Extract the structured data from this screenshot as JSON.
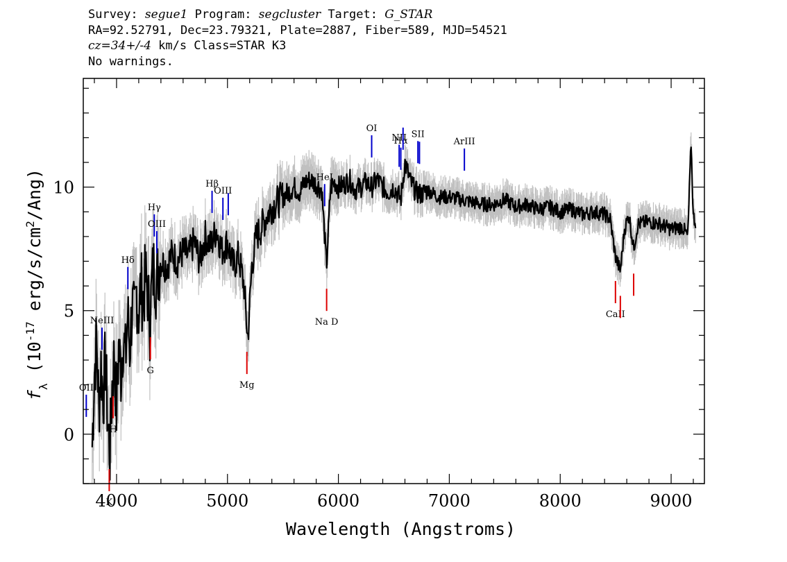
{
  "header": {
    "line1": {
      "survey_prefix": "Survey: ",
      "survey": "segue1",
      "program_prefix": " Program: ",
      "program": "segcluster",
      "target_prefix": " Target: ",
      "target": "G_STAR"
    },
    "line2": "RA=92.52791, Dec=23.79321, Plate=2887, Fiber=589, MJD=54521",
    "line3": {
      "cz": "cz=34+/-4",
      "rest": " km/s Class=STAR K3"
    },
    "line4": "No warnings."
  },
  "colors": {
    "flux": "#000000",
    "error_band": "#c0c0c0",
    "emission": "#0000cc",
    "absorption": "#dd0000"
  },
  "chart_data": {
    "type": "line",
    "title": "",
    "xlabel": "Wavelength (Angstroms)",
    "ylabel": "f_λ (10^-17 erg/s/cm^2/Ang)",
    "xlim": [
      3700,
      9300
    ],
    "ylim": [
      -2,
      14.4
    ],
    "xticks": [
      4000,
      5000,
      6000,
      7000,
      8000,
      9000
    ],
    "yticks": [
      0,
      5,
      10
    ],
    "grid": false,
    "series": [
      {
        "x": [
          3780,
          3800,
          3820,
          3840,
          3860,
          3880,
          3900,
          3920,
          3940,
          3960,
          3980,
          4000,
          4020,
          4040,
          4060,
          4080,
          4100,
          4120,
          4140,
          4160,
          4180,
          4200,
          4220,
          4240,
          4260,
          4280,
          4300,
          4320,
          4340,
          4360,
          4380,
          4400,
          4450,
          4500,
          4550,
          4600,
          4650,
          4700,
          4750,
          4800,
          4850,
          4900,
          4950,
          5000,
          5050,
          5100,
          5150,
          5183,
          5220,
          5260,
          5300,
          5350,
          5400,
          5450,
          5500,
          5550,
          5600,
          5650,
          5700,
          5750,
          5800,
          5850,
          5893,
          5930,
          5970,
          6000,
          6050,
          6100,
          6150,
          6200,
          6250,
          6300,
          6350,
          6400,
          6450,
          6500,
          6563,
          6600,
          6650,
          6700,
          6750,
          6800,
          6900,
          7000,
          7100,
          7200,
          7300,
          7400,
          7500,
          7600,
          7700,
          7800,
          7900,
          8000,
          8100,
          8200,
          8300,
          8400,
          8450,
          8498,
          8542,
          8580,
          8620,
          8662,
          8700,
          8800,
          8900,
          9000,
          9100,
          9150,
          9180,
          9200,
          9220
        ],
        "y": [
          -0.5,
          2.5,
          3.8,
          1.0,
          2.8,
          1.5,
          3.0,
          0.5,
          -0.8,
          2.0,
          3.2,
          1.0,
          3.5,
          2.5,
          4.0,
          3.0,
          4.8,
          3.5,
          5.2,
          4.5,
          5.8,
          5.0,
          6.0,
          5.5,
          6.3,
          5.8,
          4.5,
          6.2,
          6.8,
          6.0,
          6.8,
          7.0,
          6.8,
          7.3,
          7.0,
          7.4,
          7.2,
          7.8,
          7.0,
          8.0,
          7.6,
          8.3,
          7.4,
          7.8,
          6.8,
          7.2,
          6.0,
          3.8,
          6.8,
          8.0,
          8.3,
          8.8,
          9.2,
          9.4,
          9.6,
          9.8,
          10.0,
          9.8,
          10.2,
          10.3,
          10.1,
          9.9,
          6.8,
          10.0,
          10.2,
          10.0,
          10.1,
          10.3,
          9.9,
          10.0,
          10.2,
          10.0,
          10.3,
          10.0,
          9.8,
          10.0,
          9.5,
          11.0,
          10.2,
          9.8,
          9.7,
          9.9,
          9.6,
          9.6,
          9.5,
          9.4,
          9.3,
          9.3,
          9.5,
          9.2,
          9.3,
          9.1,
          9.2,
          9.0,
          9.1,
          8.9,
          9.0,
          8.9,
          8.7,
          7.2,
          6.6,
          8.3,
          8.9,
          7.5,
          8.5,
          8.6,
          8.5,
          8.3,
          8.4,
          8.0,
          11.8,
          8.8,
          8.6
        ]
      }
    ],
    "emission_lines": [
      {
        "label": "OII",
        "x": 3727
      },
      {
        "label": "NeIII",
        "x": 3869
      },
      {
        "label": "Hδ",
        "x": 4102
      },
      {
        "label": "Hγ",
        "x": 4340
      },
      {
        "label": "OIII",
        "x": 4363
      },
      {
        "label": "Hβ",
        "x": 4861
      },
      {
        "label": "OIII",
        "x": 4959
      },
      {
        "label": "",
        "x": 5007
      },
      {
        "label": "HeI",
        "x": 5876
      },
      {
        "label": "OI",
        "x": 6300
      },
      {
        "label": "NII",
        "x": 6548
      },
      {
        "label": "Hα",
        "x": 6563
      },
      {
        "label": "",
        "x": 6583
      },
      {
        "label": "SII",
        "x": 6717
      },
      {
        "label": "",
        "x": 6731
      },
      {
        "label": "ArIII",
        "x": 7136
      }
    ],
    "absorption_lines": [
      {
        "label": "K",
        "x": 3934
      },
      {
        "label": "H",
        "x": 3969
      },
      {
        "label": "G",
        "x": 4305
      },
      {
        "label": "Mg",
        "x": 5175
      },
      {
        "label": "Na D",
        "x": 5894
      },
      {
        "label": "CaII",
        "x": 8498
      },
      {
        "label": "",
        "x": 8542
      },
      {
        "label": "",
        "x": 8662
      }
    ]
  }
}
